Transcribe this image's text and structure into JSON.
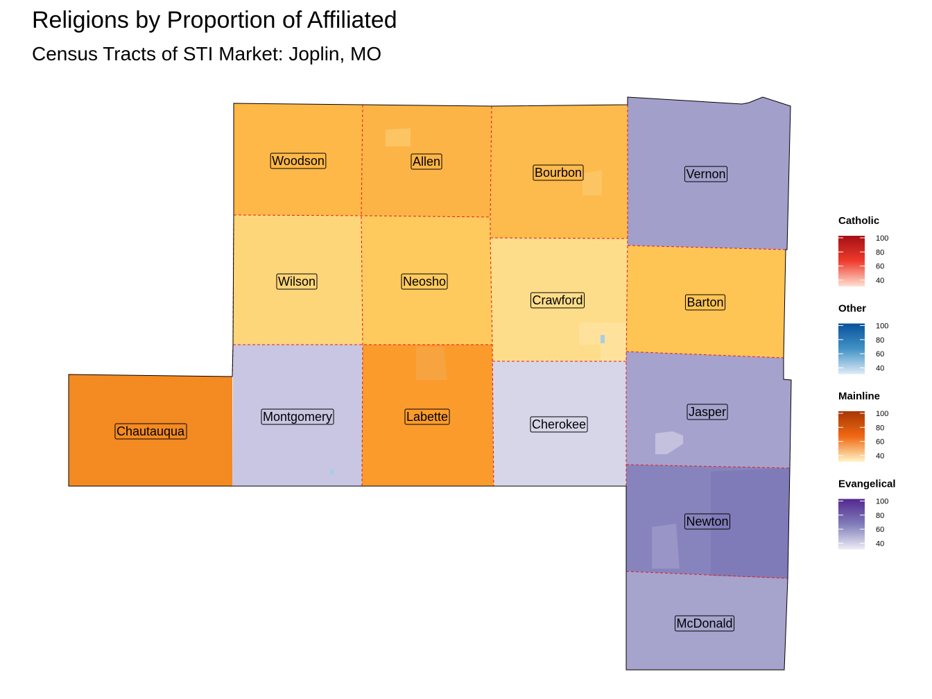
{
  "title": "Religions by Proportion of Affiliated",
  "subtitle": "Census Tracts of STI Market: Joplin, MO",
  "counties": [
    {
      "name": "Woodson",
      "category": "Mainline"
    },
    {
      "name": "Allen",
      "category": "Mainline"
    },
    {
      "name": "Bourbon",
      "category": "Mainline"
    },
    {
      "name": "Vernon",
      "category": "Evangelical"
    },
    {
      "name": "Wilson",
      "category": "Mainline"
    },
    {
      "name": "Neosho",
      "category": "Mainline"
    },
    {
      "name": "Crawford",
      "category": "Mainline"
    },
    {
      "name": "Barton",
      "category": "Mainline"
    },
    {
      "name": "Chautauqua",
      "category": "Mainline"
    },
    {
      "name": "Montgomery",
      "category": "Evangelical"
    },
    {
      "name": "Labette",
      "category": "Mainline"
    },
    {
      "name": "Cherokee",
      "category": "Evangelical"
    },
    {
      "name": "Jasper",
      "category": "Evangelical"
    },
    {
      "name": "Newton",
      "category": "Evangelical"
    },
    {
      "name": "McDonald",
      "category": "Evangelical"
    }
  ],
  "legend": [
    {
      "title": "Catholic",
      "ticks": [
        "100",
        "80",
        "60",
        "40"
      ],
      "color_top": "#a50f15",
      "color_mid": "#ef3b2c",
      "color_bottom": "#fee0d2"
    },
    {
      "title": "Other",
      "ticks": [
        "100",
        "80",
        "60",
        "40"
      ],
      "color_top": "#08519c",
      "color_mid": "#4292c6",
      "color_bottom": "#deebf7"
    },
    {
      "title": "Mainline",
      "ticks": [
        "100",
        "80",
        "60",
        "40"
      ],
      "color_top": "#a63603",
      "color_mid": "#f16913",
      "color_bottom": "#fff5c8"
    },
    {
      "title": "Evangelical",
      "ticks": [
        "100",
        "80",
        "60",
        "40"
      ],
      "color_top": "#54278f",
      "color_mid": "#807dba",
      "color_bottom": "#efedf5"
    }
  ],
  "colors": {
    "county_border": "#e41a1c",
    "map_outline": "#000000"
  }
}
